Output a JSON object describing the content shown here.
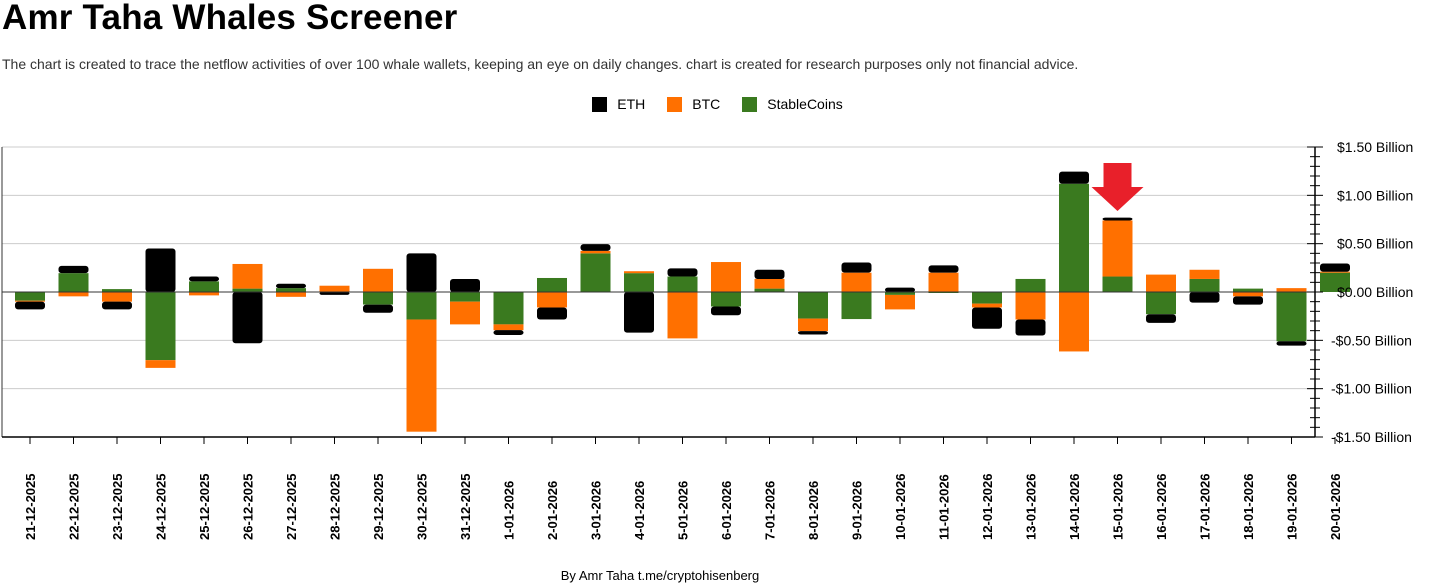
{
  "title": "Amr Taha Whales Screener",
  "subtitle": "The chart is created to trace the netflow activities of over 100 whale wallets, keeping an eye on daily changes.  chart is created for research purposes only not financial advice.",
  "footer": "By Amr Taha  t.me/cryptohisenberg",
  "chart_data": {
    "type": "bar",
    "stacked": true,
    "title": "Amr Taha Whales Screener",
    "xlabel": "",
    "ylabel": "",
    "ylim": [
      -1.5,
      1.5
    ],
    "y_unit": "Billion USD",
    "y_ticks": [
      1.5,
      1.0,
      0.5,
      0.0,
      -0.5,
      -1.0,
      -1.5
    ],
    "y_tick_labels": [
      "$1.50 Billion",
      "$1.00 Billion",
      "$0.50 Billion",
      "$0.00 Billion",
      "-$0.50 Billion",
      "-$1.00 Billion",
      "-$1.50 Billion"
    ],
    "grid": true,
    "legend_position": "top-center",
    "categories": [
      "21-12-2025",
      "22-12-2025",
      "23-12-2025",
      "24-12-2025",
      "25-12-2025",
      "26-12-2025",
      "27-12-2025",
      "28-12-2025",
      "29-12-2025",
      "30-12-2025",
      "31-12-2025",
      "1-01-2026",
      "2-01-2026",
      "3-01-2026",
      "4-01-2026",
      "5-01-2026",
      "6-01-2026",
      "7-01-2026",
      "8-01-2026",
      "9-01-2026",
      "10-01-2026",
      "11-01-2026",
      "12-01-2026",
      "13-01-2026",
      "14-01-2026",
      "15-01-2026",
      "16-01-2026",
      "17-01-2026",
      "18-01-2026",
      "19-01-2026",
      "20-01-2026"
    ],
    "series": [
      {
        "name": "StableCoins",
        "color": "#3a7a1f",
        "values": [
          -0.09,
          0.195,
          0.03,
          -0.705,
          0.11,
          0.035,
          0.04,
          0.0,
          -0.13,
          -0.285,
          -0.1,
          -0.335,
          0.145,
          0.4,
          0.195,
          0.16,
          -0.15,
          0.035,
          -0.275,
          -0.28,
          -0.03,
          -0.01,
          -0.12,
          0.135,
          1.12,
          0.16,
          -0.23,
          0.135,
          0.035,
          -0.51,
          0.2
        ]
      },
      {
        "name": "BTC",
        "color": "#ff7000",
        "values": [
          -0.01,
          -0.045,
          -0.1,
          -0.08,
          -0.035,
          0.255,
          -0.05,
          0.065,
          0.24,
          -1.16,
          -0.235,
          -0.06,
          -0.16,
          0.025,
          0.02,
          -0.48,
          0.31,
          0.1,
          -0.13,
          0.2,
          -0.15,
          0.2,
          -0.04,
          -0.285,
          -0.615,
          0.58,
          0.18,
          0.095,
          -0.045,
          0.04,
          0.01
        ]
      },
      {
        "name": "ETH",
        "color": "#000000",
        "values": [
          -0.08,
          0.075,
          -0.08,
          0.45,
          0.05,
          -0.53,
          0.045,
          -0.03,
          -0.085,
          0.4,
          0.135,
          -0.05,
          -0.125,
          0.07,
          -0.42,
          0.085,
          -0.09,
          0.095,
          -0.035,
          0.105,
          0.045,
          0.075,
          -0.22,
          -0.165,
          0.125,
          0.03,
          -0.09,
          -0.11,
          -0.085,
          -0.045,
          0.085
        ]
      }
    ],
    "annotations": [
      {
        "type": "arrow",
        "category": "15-01-2026",
        "color": "#e8202a"
      }
    ]
  }
}
